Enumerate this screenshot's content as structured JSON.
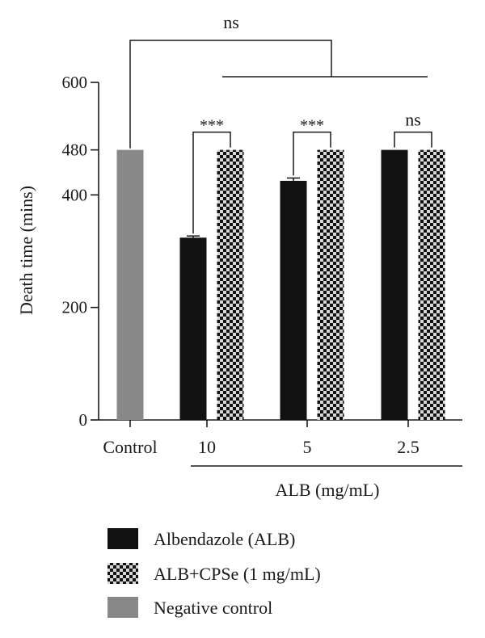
{
  "chart_data": {
    "type": "bar",
    "ylabel": "Death time (mins)",
    "xlabel": "ALB (mg/mL)",
    "ylim": [
      0,
      600
    ],
    "yticks": [
      0,
      200,
      400,
      480,
      600
    ],
    "categories": [
      "Control",
      "10",
      "5",
      "2.5"
    ],
    "series": [
      {
        "name": "Albendazole (ALB)",
        "color": "#111111",
        "pattern": "solid",
        "values": [
          null,
          324,
          425,
          480
        ],
        "errors": [
          null,
          3,
          5,
          0
        ]
      },
      {
        "name": "ALB+CPSe (1 mg/mL)",
        "color": "#111111",
        "pattern": "checker",
        "values": [
          null,
          480,
          480,
          480
        ],
        "errors": [
          null,
          0,
          0,
          0
        ]
      },
      {
        "name": "Negative control",
        "color": "#888888",
        "pattern": "solid",
        "values": [
          480,
          null,
          null,
          null
        ],
        "errors": [
          0,
          null,
          null,
          null
        ]
      }
    ],
    "significance": {
      "top": "ns",
      "pairs": [
        "***",
        "***",
        "ns"
      ]
    },
    "legend_position": "bottom"
  }
}
